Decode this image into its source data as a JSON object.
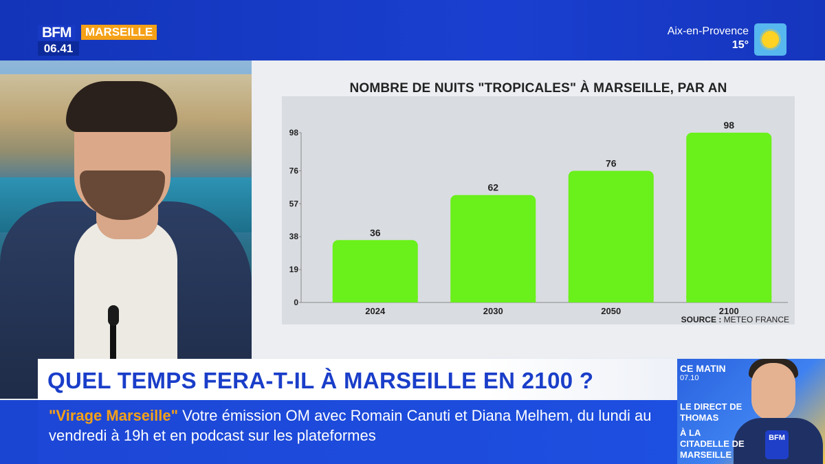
{
  "channel": {
    "logo": "BFM",
    "city": "MARSEILLE",
    "time": "06.41"
  },
  "weather": {
    "city": "Aix-en-Provence",
    "temp": "15°",
    "icon": "sun-icon"
  },
  "chart_data": {
    "type": "bar",
    "title": "NOMBRE DE NUITS \"TROPICALES\" À MARSEILLE, PAR AN",
    "categories": [
      "2024",
      "2030",
      "2050",
      "2100"
    ],
    "values": [
      36,
      62,
      76,
      98
    ],
    "data_labels": [
      "36",
      "62",
      "76",
      "98"
    ],
    "yticks": [
      0,
      19,
      38,
      57,
      76,
      98
    ],
    "ylim": [
      0,
      98
    ],
    "xlabel": "",
    "ylabel": "",
    "grid": false,
    "bar_color": "#6af01a",
    "source_label": "SOURCE :",
    "source": "METEO FRANCE"
  },
  "headline": "QUEL TEMPS FERA-T-IL À MARSEILLE EN 2100 ?",
  "ticker": {
    "highlight": "\"Virage Marseille\"",
    "text": " Votre émission OM avec Romain Canuti et Diana Melhem, du lundi au vendredi à 19h et en podcast sur les plateformes"
  },
  "promo": {
    "show": "CE MATIN",
    "time": "07.10",
    "title": "LE DIRECT DE THOMAS",
    "subtitle": "À LA CITADELLE DE MARSEILLE",
    "mic_logo": "BFM"
  },
  "colors": {
    "brand_blue": "#1a3ec9",
    "accent_orange": "#f5a117",
    "bar_green": "#6af01a"
  }
}
